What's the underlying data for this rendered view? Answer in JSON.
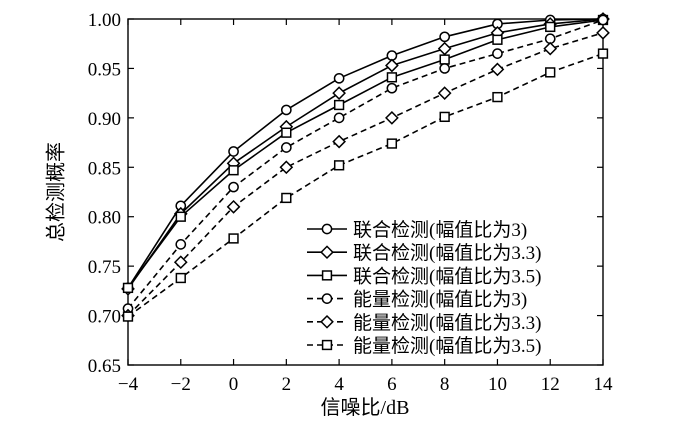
{
  "chart_data": {
    "type": "line",
    "title": "",
    "xlabel": "信噪比/dB",
    "ylabel": "总检测概率",
    "xlim": [
      -4,
      14
    ],
    "ylim": [
      0.65,
      1.0
    ],
    "xticks": [
      -4,
      -2,
      0,
      2,
      4,
      6,
      8,
      10,
      12,
      14
    ],
    "xtick_labels": [
      "−4",
      "−2",
      "0",
      "2",
      "4",
      "6",
      "8",
      "10",
      "12",
      "14"
    ],
    "yticks": [
      0.65,
      0.7,
      0.75,
      0.8,
      0.85,
      0.9,
      0.95,
      1.0
    ],
    "ytick_labels": [
      "0.65",
      "0.70",
      "0.75",
      "0.80",
      "0.85",
      "0.90",
      "0.95",
      "1.00"
    ],
    "grid": false,
    "legend_position": "bottom-right",
    "x": [
      -4,
      -2,
      0,
      2,
      4,
      6,
      8,
      10,
      12,
      14
    ],
    "series": [
      {
        "name": "联合检测(幅值比为3)",
        "line_style": "solid",
        "marker": "circle",
        "color": "#000000",
        "values": [
          0.728,
          0.811,
          0.866,
          0.908,
          0.94,
          0.963,
          0.982,
          0.995,
          0.999,
          1.0
        ]
      },
      {
        "name": "联合检测(幅值比为3.3)",
        "line_style": "solid",
        "marker": "diamond",
        "color": "#000000",
        "values": [
          0.727,
          0.803,
          0.854,
          0.891,
          0.925,
          0.953,
          0.97,
          0.986,
          0.995,
          1.0
        ]
      },
      {
        "name": "联合检测(幅值比为3.5)",
        "line_style": "solid",
        "marker": "square",
        "color": "#000000",
        "values": [
          0.728,
          0.8,
          0.847,
          0.885,
          0.913,
          0.941,
          0.959,
          0.979,
          0.992,
          0.999
        ]
      },
      {
        "name": "能量检测(幅值比为3)",
        "line_style": "dashed",
        "marker": "circle",
        "color": "#000000",
        "values": [
          0.707,
          0.772,
          0.83,
          0.87,
          0.9,
          0.93,
          0.95,
          0.965,
          0.98,
          0.999
        ]
      },
      {
        "name": "能量检测(幅值比为3.3)",
        "line_style": "dashed",
        "marker": "diamond",
        "color": "#000000",
        "values": [
          0.7,
          0.754,
          0.81,
          0.85,
          0.876,
          0.9,
          0.925,
          0.949,
          0.97,
          0.986
        ]
      },
      {
        "name": "能量检测(幅值比为3.5)",
        "line_style": "dashed",
        "marker": "square",
        "color": "#000000",
        "values": [
          0.699,
          0.738,
          0.778,
          0.819,
          0.852,
          0.874,
          0.901,
          0.921,
          0.946,
          0.965
        ]
      }
    ]
  }
}
